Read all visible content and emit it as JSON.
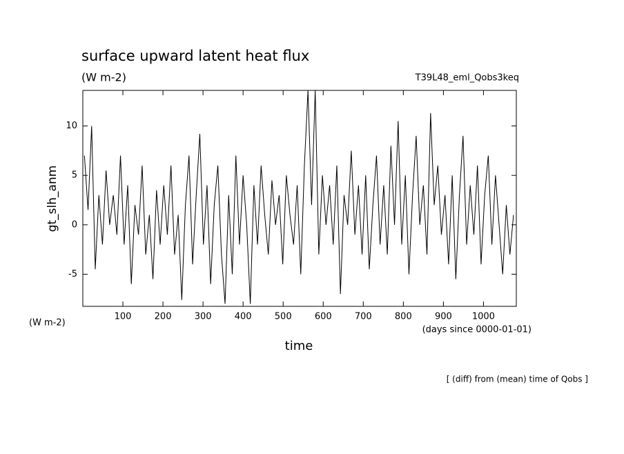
{
  "chart_data": {
    "type": "line",
    "title": "surface upward latent heat flux",
    "subtitle": "(W m-2)",
    "annotation_right": "T39L48_eml_Qobs3keq",
    "y_label": "gt_slh_anm",
    "y_units": "(W m-2)",
    "x_label": "time",
    "x_units": "(days since 0000-01-01)",
    "footnote": "[ (diff) from (mean) time of Qobs ]",
    "x": [
      4,
      13,
      22,
      31,
      40,
      49,
      58,
      67,
      76,
      85,
      94,
      103,
      112,
      121,
      130,
      139,
      148,
      157,
      166,
      175,
      184,
      193,
      202,
      211,
      220,
      229,
      238,
      247,
      256,
      265,
      274,
      283,
      292,
      301,
      310,
      319,
      328,
      337,
      346,
      355,
      364,
      373,
      382,
      391,
      400,
      409,
      418,
      427,
      436,
      445,
      454,
      463,
      472,
      481,
      490,
      499,
      508,
      517,
      526,
      535,
      544,
      553,
      562,
      571,
      580,
      589,
      598,
      607,
      616,
      625,
      634,
      643,
      652,
      661,
      670,
      679,
      688,
      697,
      706,
      715,
      724,
      733,
      742,
      751,
      760,
      769,
      778,
      787,
      796,
      805,
      814,
      823,
      832,
      841,
      850,
      859,
      868,
      877,
      886,
      895,
      904,
      913,
      922,
      931,
      940,
      949,
      958,
      967,
      976,
      985,
      994,
      1003,
      1012,
      1021,
      1030,
      1039,
      1048,
      1057,
      1066,
      1075
    ],
    "series": [
      {
        "color": "#000000",
        "values": [
          7,
          1.5,
          10,
          -4.5,
          3,
          -2,
          5.5,
          0,
          3,
          -1,
          7,
          -2,
          4,
          -6,
          2,
          -1,
          6,
          -3,
          1,
          -5.5,
          3.5,
          -2,
          4,
          -1,
          6,
          -3,
          1,
          -7.6,
          2,
          7,
          -4,
          3,
          9.2,
          -2,
          4,
          -6,
          2,
          6,
          -3,
          -8,
          3,
          -5,
          7,
          -2,
          5,
          0,
          -8,
          4,
          -2,
          6,
          1,
          -3,
          4.5,
          0,
          3,
          -4,
          5,
          1,
          -2,
          4,
          -5,
          6,
          13.6,
          2,
          13.6,
          -3,
          5,
          0,
          4,
          -2,
          6,
          -7,
          3,
          0,
          7.5,
          -1,
          4,
          -3,
          5,
          -4.5,
          2,
          7,
          -2,
          4,
          -3,
          8,
          0,
          10.5,
          -2,
          5,
          -5,
          3,
          9,
          0,
          4,
          -3,
          11.3,
          2,
          6,
          -1,
          3,
          -4,
          5,
          -5.5,
          3,
          9,
          -2,
          4,
          -1,
          6,
          -4,
          3,
          7,
          -2,
          5,
          0,
          -5,
          2,
          -3,
          1
        ]
      }
    ],
    "xlim": [
      0,
      1082
    ],
    "ylim": [
      -8.25,
      13.6
    ],
    "xticks": [
      100,
      200,
      300,
      400,
      500,
      600,
      700,
      800,
      900,
      1000
    ],
    "yticks": [
      -5,
      0,
      5,
      10
    ]
  }
}
